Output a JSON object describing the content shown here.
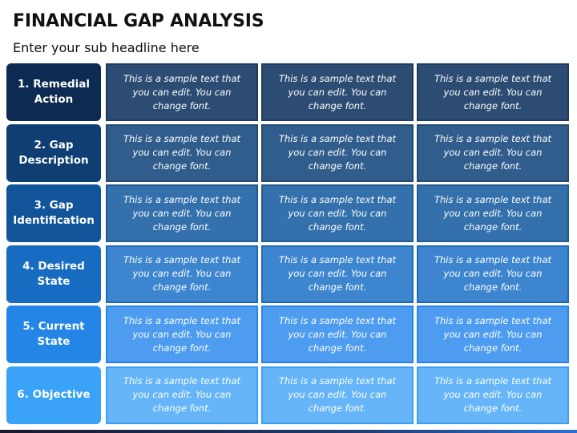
{
  "header": {
    "title": "FINANCIAL GAP ANALYSIS",
    "subtitle": "Enter your sub headline here"
  },
  "rows": [
    {
      "label": "1. Remedial\nAction",
      "label_color": "#0c2a52",
      "cell_color": "#2d4c73",
      "cell_border": "#1e3a5f",
      "cells": [
        "This is a sample text that you can edit. You can change font.",
        "This is a sample text that you can edit. You can change font.",
        "This is a sample text that you can edit. You can change font."
      ]
    },
    {
      "label": "2. Gap\nDescription",
      "label_color": "#0f3e72",
      "cell_color": "#315d8c",
      "cell_border": "#23496f",
      "cells": [
        "This is a sample text that you can edit. You can change font.",
        "This is a sample text that you can edit. You can change font.",
        "This is a sample text that you can edit. You can change font."
      ]
    },
    {
      "label": "3. Gap\nIdentification",
      "label_color": "#12549a",
      "cell_color": "#3470ac",
      "cell_border": "#225a8f",
      "cells": [
        "This is a sample text that you can edit. You can change font.",
        "This is a sample text that you can edit. You can change font.",
        "This is a sample text that you can edit. You can change font."
      ]
    },
    {
      "label": "4. Desired\nState",
      "label_color": "#176cc2",
      "cell_color": "#3d86cf",
      "cell_border": "#1e6ab8",
      "cells": [
        "This is a sample text that you can edit. You can change font.",
        "This is a sample text that you can edit. You can change font.",
        "This is a sample text that you can edit. You can change font."
      ]
    },
    {
      "label": "5. Current\nState",
      "label_color": "#2386e6",
      "cell_color": "#4d9cf0",
      "cell_border": "#2a86e6",
      "cells": [
        "This is a sample text that you can edit. You can change font.",
        "This is a sample text that you can edit. You can change font.",
        "This is a sample text that you can edit. You can change font."
      ]
    },
    {
      "label": "6. Objective",
      "label_color": "#3aa2f7",
      "cell_color": "#65b5f8",
      "cell_border": "#3d9ff2",
      "cells": [
        "This is a sample text that you can edit. You can change font.",
        "This is a sample text that you can edit. You can change font.",
        "This is a sample text that you can edit. You can change font."
      ]
    }
  ]
}
